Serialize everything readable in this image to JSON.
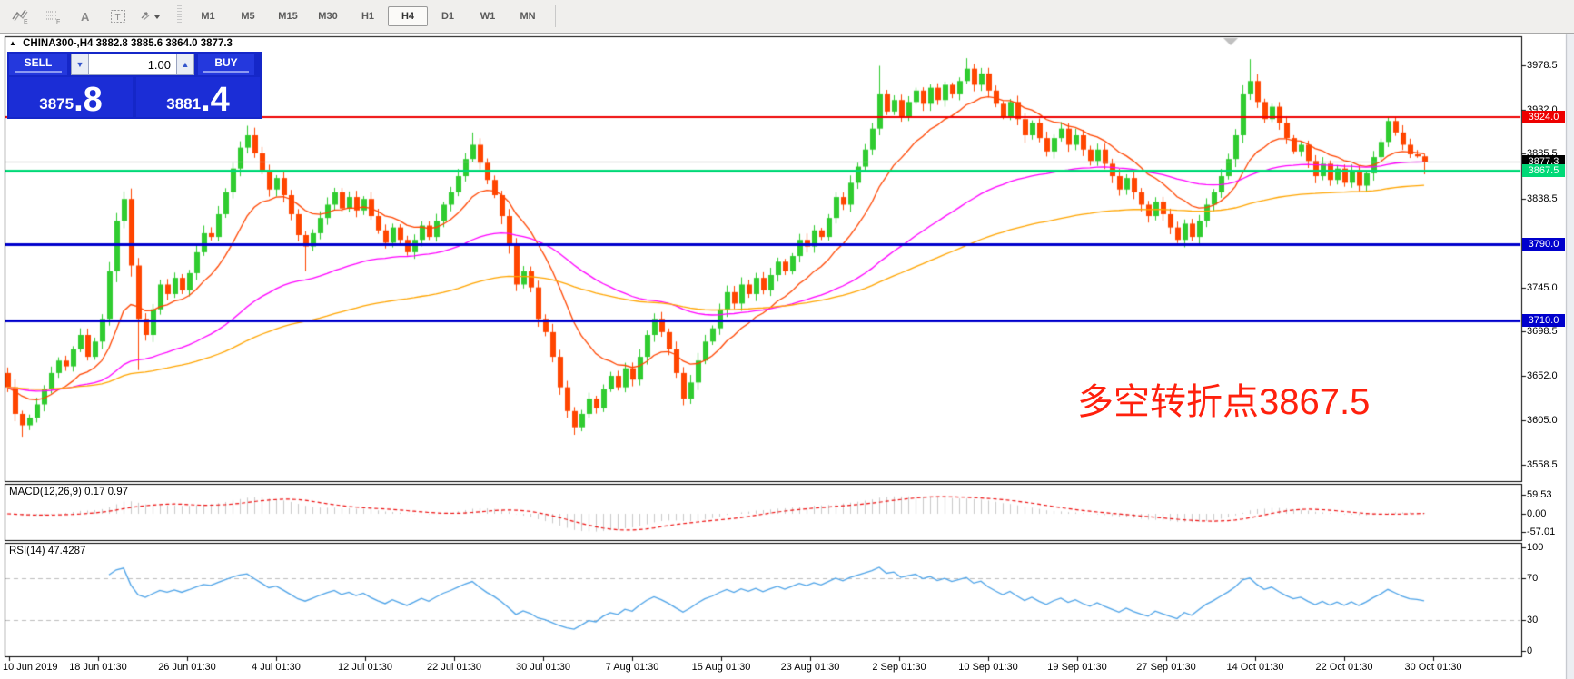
{
  "toolbar": {
    "icons": [
      {
        "name": "chart-expert-icon"
      },
      {
        "name": "grid-function-icon"
      },
      {
        "name": "text-label-icon"
      },
      {
        "name": "text-box-icon"
      },
      {
        "name": "arrow-objects-icon"
      }
    ],
    "timeframes": [
      "M1",
      "M5",
      "M15",
      "M30",
      "H1",
      "H4",
      "D1",
      "W1",
      "MN"
    ],
    "active_timeframe": "H4"
  },
  "symbol_header": {
    "collapse_arrow": "▲",
    "symbol": "CHINA300-,H4",
    "quote": "3882.8 3885.6 3864.0 3877.3"
  },
  "trade_panel": {
    "sell_label": "SELL",
    "buy_label": "BUY",
    "volume": "1.00",
    "down_glyph": "▼",
    "up_glyph": "▲",
    "sell_price_main": "3875",
    "sell_price_big": ".8",
    "buy_price_main": "3881",
    "buy_price_big": ".4"
  },
  "annotation": {
    "text": "多空转折点3867.5",
    "color": "#ff200d"
  },
  "indicator_labels": {
    "macd": "MACD(12,26,9) 0.17 0.97",
    "rsi": "RSI(14) 47.4287"
  },
  "price_axis": {
    "ticks": [
      {
        "label": "3978.5",
        "value": 3978.5
      },
      {
        "label": "3932.0",
        "value": 3932.0
      },
      {
        "label": "3885.5",
        "value": 3885.5
      },
      {
        "label": "3838.5",
        "value": 3838.5
      },
      {
        "label": "3745.0",
        "value": 3745.0
      },
      {
        "label": "3698.5",
        "value": 3698.5
      },
      {
        "label": "3652.0",
        "value": 3652.0
      },
      {
        "label": "3605.0",
        "value": 3605.0
      },
      {
        "label": "3558.5",
        "value": 3558.5
      }
    ],
    "badges": [
      {
        "label": "3924.0",
        "value": 3924.0,
        "bg": "#ee0000"
      },
      {
        "label": "3877.3",
        "value": 3877.3,
        "bg": "#000000"
      },
      {
        "label": "3867.5",
        "value": 3867.5,
        "bg": "#00d977"
      },
      {
        "label": "3790.0",
        "value": 3790.0,
        "bg": "#0000cc"
      },
      {
        "label": "3710.0",
        "value": 3710.0,
        "bg": "#0000cc"
      }
    ]
  },
  "macd_axis": [
    {
      "label": "59.53",
      "value": 59.53
    },
    {
      "label": "0.00",
      "value": 0.0
    },
    {
      "label": "-57.01",
      "value": -57.01
    }
  ],
  "rsi_axis": [
    {
      "label": "100",
      "value": 100
    },
    {
      "label": "70",
      "value": 70
    },
    {
      "label": "30",
      "value": 30
    },
    {
      "label": "0",
      "value": 0
    }
  ],
  "time_axis": [
    "10 Jun 2019",
    "18 Jun 01:30",
    "26 Jun 01:30",
    "4 Jul 01:30",
    "12 Jul 01:30",
    "22 Jul 01:30",
    "30 Jul 01:30",
    "7 Aug 01:30",
    "15 Aug 01:30",
    "23 Aug 01:30",
    "2 Sep 01:30",
    "10 Sep 01:30",
    "19 Sep 01:30",
    "27 Sep 01:30",
    "14 Oct 01:30",
    "22 Oct 01:30",
    "30 Oct 01:30"
  ],
  "chart_data": {
    "type": "candlestick",
    "symbol": "CHINA300-",
    "timeframe": "H4",
    "title": "CHINA300-,H4",
    "y_range": [
      3558.5,
      3978.5
    ],
    "last_ohlc": {
      "open": 3882.8,
      "high": 3885.6,
      "low": 3864.0,
      "close": 3877.3
    },
    "first_open": 3655,
    "closes": [
      3640,
      3612,
      3600,
      3608,
      3622,
      3638,
      3655,
      3668,
      3662,
      3680,
      3695,
      3672,
      3688,
      3712,
      3762,
      3815,
      3838,
      3768,
      3712,
      3695,
      3722,
      3748,
      3738,
      3755,
      3742,
      3760,
      3782,
      3802,
      3798,
      3822,
      3845,
      3870,
      3892,
      3905,
      3886,
      3868,
      3848,
      3860,
      3842,
      3822,
      3800,
      3788,
      3802,
      3818,
      3832,
      3845,
      3828,
      3840,
      3826,
      3838,
      3820,
      3805,
      3792,
      3808,
      3795,
      3782,
      3795,
      3810,
      3798,
      3815,
      3832,
      3845,
      3862,
      3880,
      3895,
      3876,
      3858,
      3842,
      3820,
      3790,
      3748,
      3762,
      3745,
      3712,
      3698,
      3672,
      3640,
      3615,
      3598,
      3612,
      3628,
      3618,
      3638,
      3652,
      3640,
      3660,
      3648,
      3672,
      3695,
      3712,
      3698,
      3680,
      3655,
      3628,
      3645,
      3668,
      3688,
      3702,
      3722,
      3740,
      3728,
      3748,
      3738,
      3755,
      3742,
      3758,
      3772,
      3762,
      3778,
      3795,
      3788,
      3805,
      3798,
      3818,
      3840,
      3832,
      3855,
      3872,
      3890,
      3912,
      3948,
      3930,
      3942,
      3925,
      3940,
      3952,
      3938,
      3955,
      3942,
      3958,
      3948,
      3962,
      3975,
      3958,
      3970,
      3952,
      3938,
      3925,
      3940,
      3922,
      3905,
      3918,
      3902,
      3888,
      3902,
      3912,
      3895,
      3905,
      3890,
      3878,
      3890,
      3875,
      3862,
      3848,
      3860,
      3845,
      3832,
      3820,
      3835,
      3822,
      3808,
      3795,
      3812,
      3798,
      3815,
      3832,
      3845,
      3862,
      3880,
      3905,
      3948,
      3962,
      3940,
      3922,
      3935,
      3918,
      3902,
      3888,
      3895,
      3878,
      3862,
      3875,
      3858,
      3870,
      3855,
      3868,
      3852,
      3865,
      3882,
      3898,
      3920,
      3908,
      3895,
      3885,
      3882.8,
      3877.3
    ],
    "wick_overrides": {
      "2": [
        null,
        3588
      ],
      "16": [
        3846,
        null
      ],
      "18": [
        null,
        3658
      ],
      "33": [
        3915,
        null
      ],
      "41": [
        null,
        3762
      ],
      "64": [
        3908,
        null
      ],
      "78": [
        null,
        3590
      ],
      "120": [
        3978,
        null
      ],
      "132": [
        3986,
        null
      ],
      "133": [
        3980,
        null
      ],
      "171": [
        3985,
        null
      ],
      "195": [
        3885.6,
        3864.0
      ]
    },
    "hlines": [
      {
        "value": 3924.0,
        "color": "#ee0000",
        "width": 2
      },
      {
        "value": 3867.5,
        "color": "#00d977",
        "width": 3
      },
      {
        "value": 3790.0,
        "color": "#0000cc",
        "width": 3
      },
      {
        "value": 3710.0,
        "color": "#0000cc",
        "width": 3
      },
      {
        "value": 3877.3,
        "color": "#aaaaaa",
        "width": 1
      }
    ],
    "moving_averages": [
      {
        "period": 13,
        "color": "#ff4500"
      },
      {
        "period": 55,
        "color": "#ff00ff"
      },
      {
        "period": 110,
        "color": "#ffa500"
      }
    ],
    "macd": {
      "fast": 12,
      "slow": 26,
      "signal": 9,
      "current": [
        0.17,
        0.97
      ],
      "range": [
        -57.01,
        59.53
      ],
      "hist_color": "#c9c9c9",
      "signal_color": "#ee1111"
    },
    "rsi": {
      "period": 14,
      "current": 47.4287,
      "levels": [
        30,
        70
      ],
      "range": [
        0,
        100
      ],
      "color": "#4da3e8"
    },
    "colors": {
      "up": "#30cc30",
      "down": "#ff4500"
    },
    "legend_position": "none",
    "grid": false
  }
}
